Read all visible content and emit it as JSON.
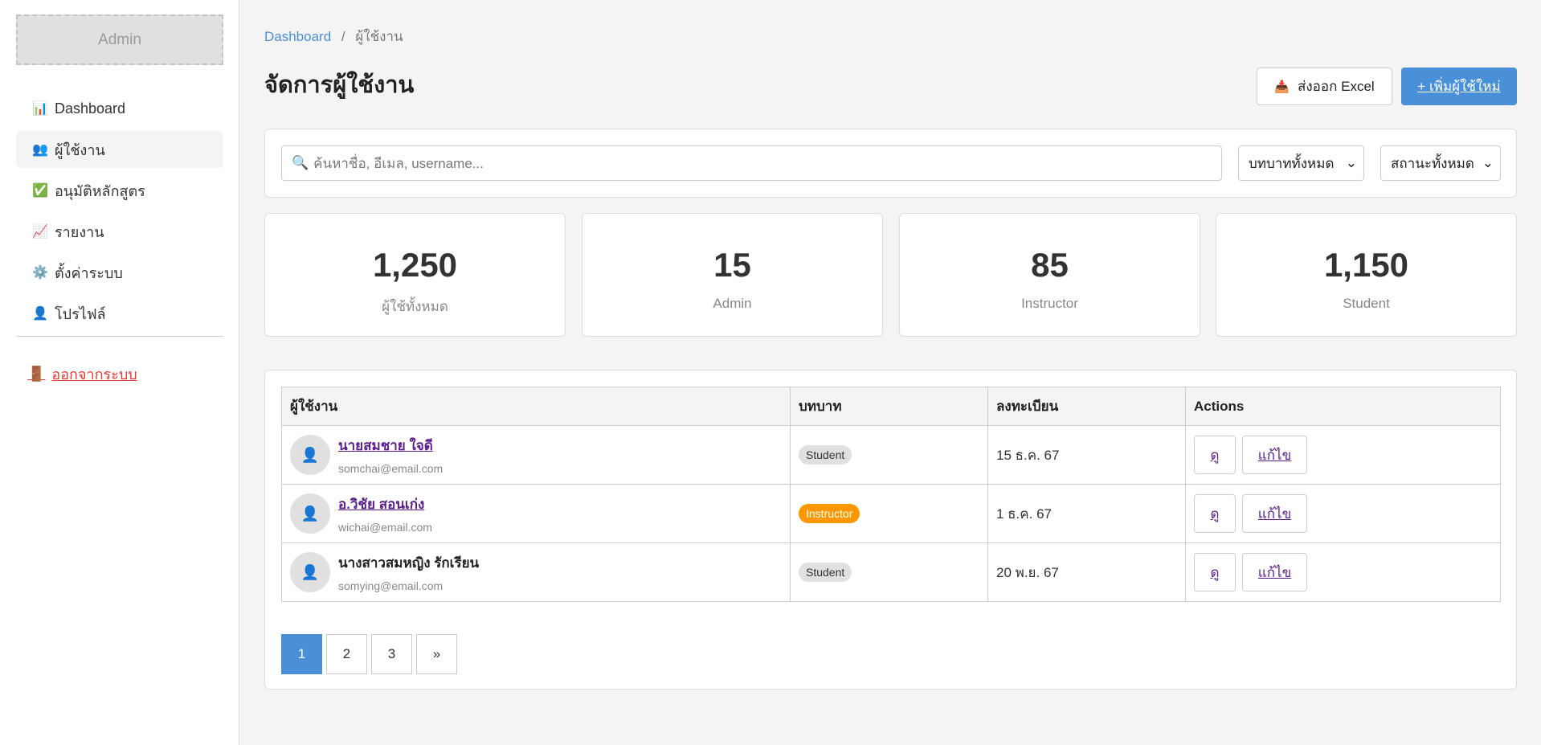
{
  "sidebar": {
    "logo": "Admin",
    "items": [
      {
        "icon": "📊",
        "label": "Dashboard",
        "active": false
      },
      {
        "icon": "👥",
        "label": "ผู้ใช้งาน",
        "active": true
      },
      {
        "icon": "✅",
        "label": "อนุมัติหลักสูตร",
        "active": false
      },
      {
        "icon": "📈",
        "label": "รายงาน",
        "active": false
      },
      {
        "icon": "⚙️",
        "label": "ตั้งค่าระบบ",
        "active": false
      },
      {
        "icon": "👤",
        "label": "โปรไฟล์",
        "active": false
      }
    ],
    "logout": {
      "icon": "🚪",
      "label": "ออกจากระบบ"
    }
  },
  "breadcrumb": {
    "home": "Dashboard",
    "sep": "/",
    "current": "ผู้ใช้งาน"
  },
  "header": {
    "title": "จัดการผู้ใช้งาน",
    "export_icon": "📥",
    "export_label": "ส่งออก Excel",
    "add_label": "+ เพิ่มผู้ใช้ใหม่"
  },
  "filters": {
    "search_icon": "🔍",
    "search_placeholder": "ค้นหาชื่อ, อีเมล, username...",
    "role": "บทบาททั้งหมด",
    "status": "สถานะทั้งหมด"
  },
  "stats": [
    {
      "value": "1,250",
      "label": "ผู้ใช้ทั้งหมด"
    },
    {
      "value": "15",
      "label": "Admin"
    },
    {
      "value": "85",
      "label": "Instructor"
    },
    {
      "value": "1,150",
      "label": "Student"
    }
  ],
  "table": {
    "headers": [
      "ผู้ใช้งาน",
      "บทบาท",
      "ลงทะเบียน",
      "Actions"
    ],
    "rows": [
      {
        "name": "นายสมชาย ใจดี",
        "email": "somchai@email.com",
        "role": "Student",
        "date": "15 ธ.ค. 67",
        "view": "ดู",
        "edit": "แก้ไข"
      },
      {
        "name": "อ.วิชัย สอนเก่ง",
        "email": "wichai@email.com",
        "role": "Instructor",
        "date": "1 ธ.ค. 67",
        "view": "ดู",
        "edit": "แก้ไข"
      },
      {
        "name": "นางสาวสมหญิง รักเรียน",
        "email": "somying@email.com",
        "role": "Student",
        "date": "20 พ.ย. 67",
        "view": "ดู",
        "edit": "แก้ไข"
      }
    ]
  },
  "pagination": [
    "1",
    "2",
    "3",
    "»"
  ],
  "colors": {
    "accent": "#4a90d9",
    "instructor": "#ff9800",
    "logout": "#e53935"
  }
}
